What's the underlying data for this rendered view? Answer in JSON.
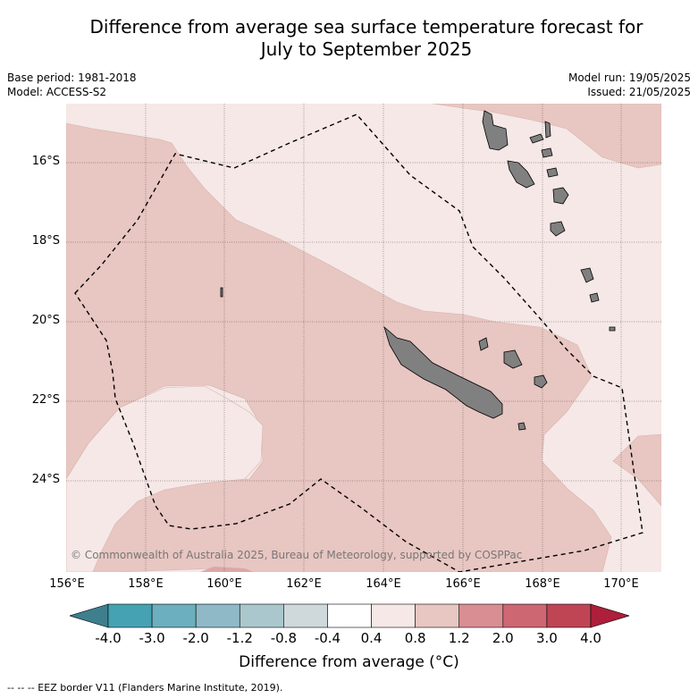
{
  "title_line1": "Difference from average sea surface temperature forecast for",
  "title_line2": "July to September 2025",
  "base_period": "Base period: 1981-2018",
  "model": "Model: ACCESS-S2",
  "model_run": "Model run: 19/05/2025",
  "issued": "Issued: 21/05/2025",
  "copyright": "© Commonwealth of Australia 2025, Bureau of Meteorology, supported by COSPPac",
  "lat_labels": [
    "16°S",
    "18°S",
    "20°S",
    "22°S",
    "24°S"
  ],
  "lon_labels": [
    "156°E",
    "158°E",
    "160°E",
    "162°E",
    "164°E",
    "166°E",
    "168°E",
    "170°E"
  ],
  "colorbar": {
    "title": "Difference from average (°C)",
    "ticks": [
      "-4.0",
      "-3.0",
      "-2.0",
      "-1.2",
      "-0.8",
      "-0.4",
      "0.4",
      "0.8",
      "1.2",
      "2.0",
      "3.0",
      "4.0"
    ],
    "colors": [
      "#3e7f8e",
      "#45a2b3",
      "#6cafbe",
      "#8fb9c6",
      "#aac7cd",
      "#cfd9dc",
      "#ffffff",
      "#f5e8e6",
      "#e8c6c1",
      "#d98e93",
      "#cd6772",
      "#bf4555",
      "#ad1f3b"
    ]
  },
  "footnote": "-- -- -- EEZ border V11 (Flanders Marine Institute, 2019)."
}
